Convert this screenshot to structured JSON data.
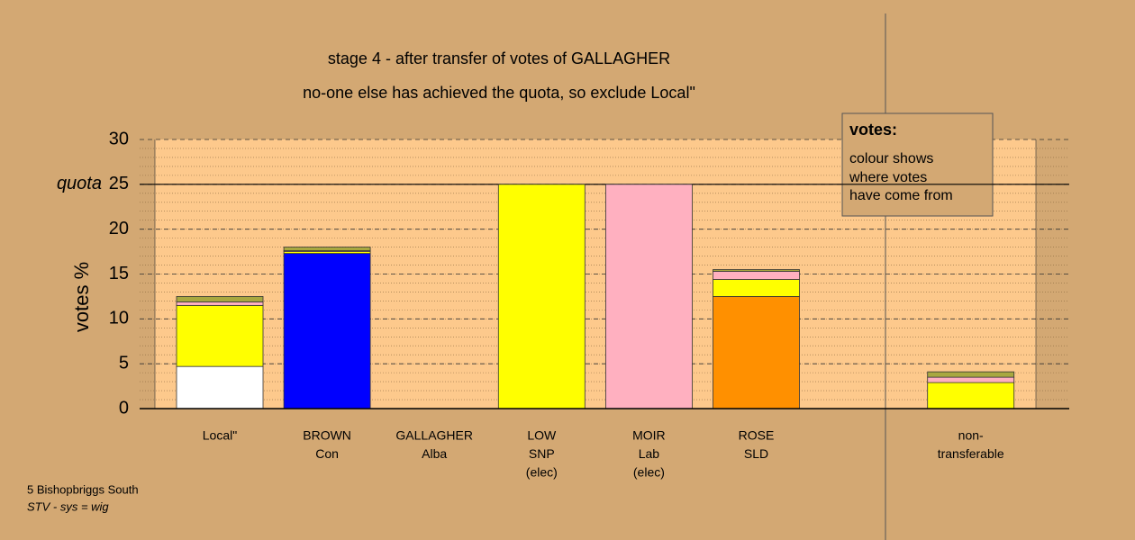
{
  "chart_data": {
    "type": "stacked_bar",
    "title": "stage 4 - after transfer of votes of GALLAGHER",
    "subtitle": "no-one else has achieved the quota, so exclude Local\"",
    "y_label": "votes %",
    "categories": [
      [
        "Local\""
      ],
      [
        "BROWN",
        "Con"
      ],
      [
        "GALLAGHER",
        "Alba"
      ],
      [
        "LOW",
        "SNP",
        "(elec)"
      ],
      [
        "MOIR",
        "Lab",
        "(elec)"
      ],
      [
        "ROSE",
        "SLD"
      ],
      null,
      [
        "non-",
        "transferable"
      ]
    ],
    "series": [
      {
        "color": "#ffffff",
        "values": [
          4.7,
          0,
          0,
          0,
          0,
          0,
          0,
          0
        ]
      },
      {
        "color": "#0000ff",
        "values": [
          0,
          17.3,
          0,
          0,
          0,
          0,
          0,
          0
        ]
      },
      {
        "color": "#ff9000",
        "values": [
          0,
          0,
          0,
          0,
          0,
          12.5,
          0,
          0
        ]
      },
      {
        "color": "#ffff00",
        "values": [
          6.8,
          0.2,
          0,
          25,
          0,
          1.9,
          0,
          2.9
        ]
      },
      {
        "color": "#ffb0c0",
        "values": [
          0.4,
          0.1,
          0,
          0,
          25,
          0.9,
          0,
          0.6
        ]
      },
      {
        "color": "#a8a840",
        "values": [
          0.6,
          0.4,
          0,
          0,
          0,
          0.2,
          0,
          0.6
        ]
      }
    ],
    "ylim": [
      0,
      30
    ],
    "yticks": [
      0,
      5,
      10,
      15,
      20,
      25,
      30
    ],
    "minor_grid_step": 1,
    "grid": true,
    "quota": 25,
    "quota_label": "quota",
    "legend": {
      "title": "votes:",
      "lines": [
        "colour shows",
        "where votes",
        "have come from"
      ]
    },
    "footer": [
      "5 Bishopbriggs South",
      "STV - sys = wig"
    ]
  }
}
